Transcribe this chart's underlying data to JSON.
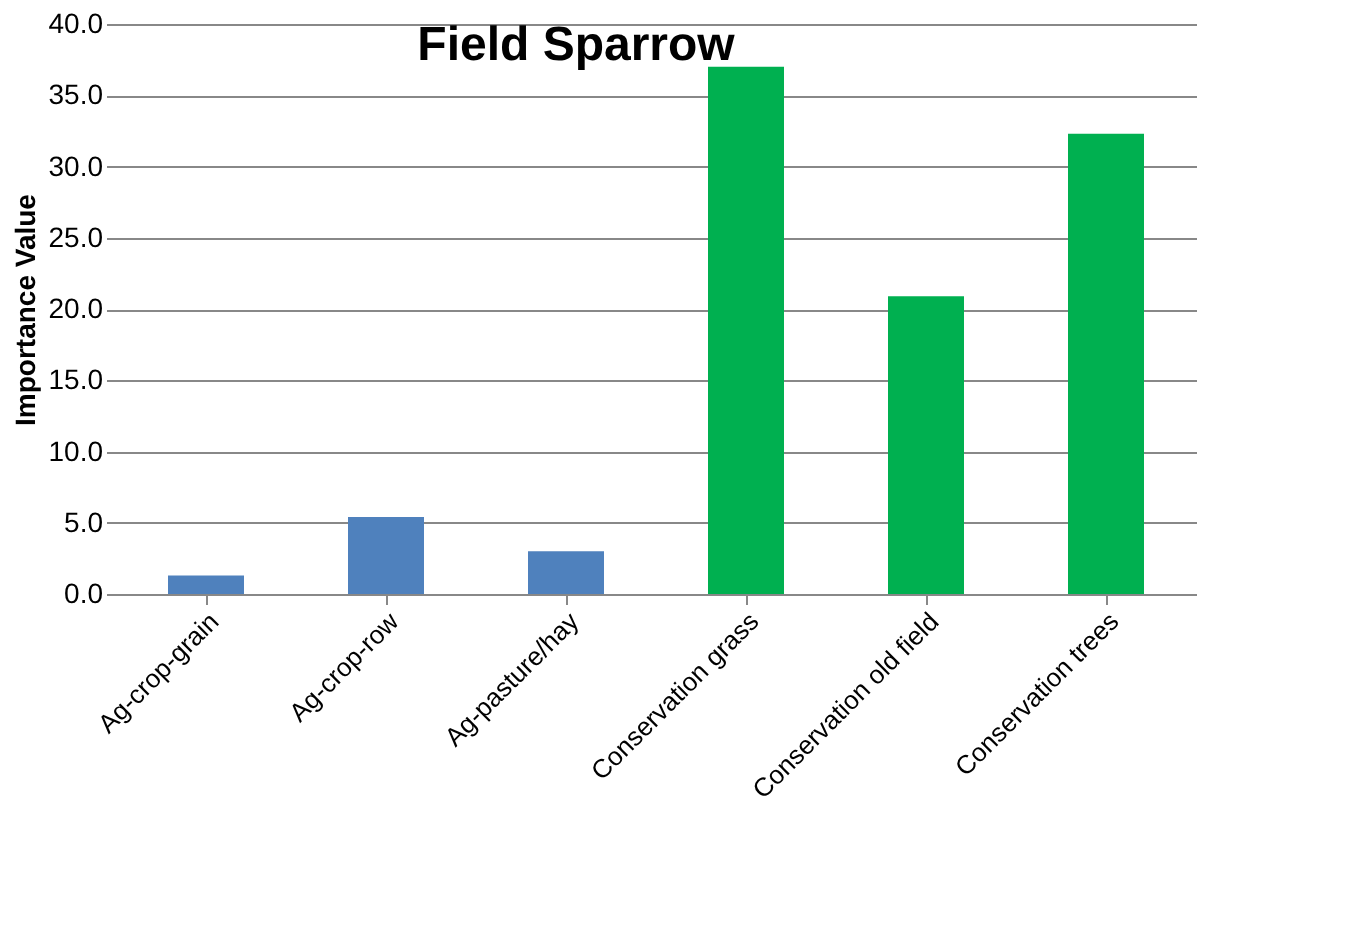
{
  "chart_data": {
    "type": "bar",
    "title": "Field Sparrow",
    "ylabel": "Importance Value",
    "categories": [
      "Ag-crop-grain",
      "Ag-crop-row",
      "Ag-pasture/hay",
      "Conservation grass",
      "Conservation old field",
      "Conservation trees"
    ],
    "values": [
      1.3,
      5.4,
      3.0,
      37.0,
      20.9,
      32.3
    ],
    "colors": [
      "#4f81bd",
      "#4f81bd",
      "#4f81bd",
      "#00b050",
      "#00b050",
      "#00b050"
    ],
    "ylim": [
      0,
      40
    ],
    "yticks": [
      {
        "value": 0,
        "label": "0.0"
      },
      {
        "value": 5,
        "label": "5.0"
      },
      {
        "value": 10,
        "label": "10.0"
      },
      {
        "value": 15,
        "label": "15.0"
      },
      {
        "value": 20,
        "label": "20.0"
      },
      {
        "value": 25,
        "label": "25.0"
      },
      {
        "value": 30,
        "label": "30.0"
      },
      {
        "value": 35,
        "label": "35.0"
      },
      {
        "value": 40,
        "label": "40.0"
      }
    ],
    "grid": "y"
  }
}
